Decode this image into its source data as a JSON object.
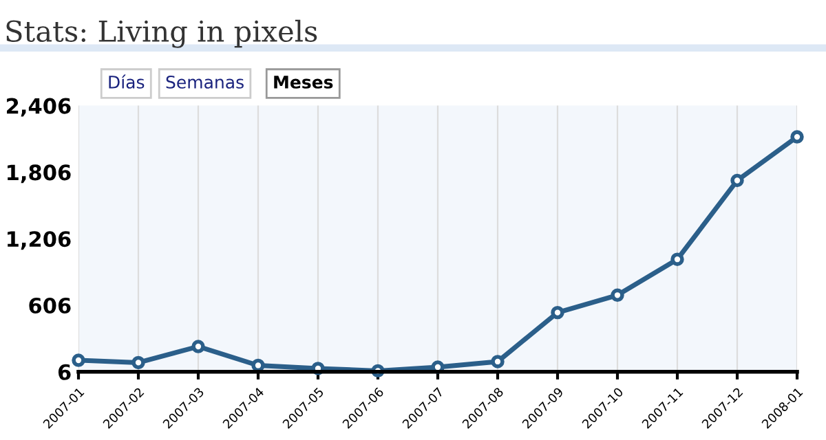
{
  "chart_data": {
    "type": "line",
    "title": "Stats: Living in pixels",
    "annotations": [
      "Días",
      "Semanas",
      "Meses"
    ],
    "categories": [
      "2007-01",
      "2007-02",
      "2007-03",
      "2007-04",
      "2007-05",
      "2007-06",
      "2007-07",
      "2007-08",
      "2007-09",
      "2007-10",
      "2007-11",
      "2007-12",
      "2008-01"
    ],
    "series": [
      {
        "color": "#2b5f8a",
        "values": [
          110,
          89,
          234,
          64,
          36,
          15,
          48,
          98,
          540,
          697,
          1020,
          1731,
          2124
        ]
      }
    ],
    "ylim": [
      6,
      2406
    ],
    "yticks": [
      {
        "value": 6,
        "label": "6"
      },
      {
        "value": 606,
        "label": "606"
      },
      {
        "value": 1206,
        "label": "1,206"
      },
      {
        "value": 1806,
        "label": "1,806"
      },
      {
        "value": 2406,
        "label": "2,406"
      }
    ],
    "grid": "x",
    "marker": "circle",
    "line_style": "solid"
  }
}
